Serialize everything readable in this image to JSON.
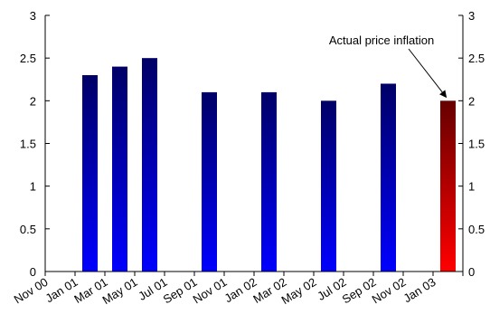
{
  "chart_data": {
    "type": "bar",
    "title": "",
    "xlabel": "",
    "ylabel": "",
    "ylim": [
      0,
      3
    ],
    "y_ticks": [
      "0",
      "0.5",
      "1",
      "1.5",
      "2",
      "2.5",
      "3"
    ],
    "y2_ticks": [
      "0",
      "0.5",
      "1",
      "1.5",
      "2",
      "2.5",
      "3"
    ],
    "categories": [
      "Nov 00",
      "Jan 01",
      "Mar 01",
      "May 01",
      "Jul 01",
      "Sep 01",
      "Nov 01",
      "Jan 02",
      "Mar 02",
      "May 02",
      "Jul 02",
      "Sep 02",
      "Nov 02",
      "Jan 03"
    ],
    "values": [
      null,
      2.3,
      2.4,
      2.5,
      null,
      2.1,
      null,
      2.1,
      null,
      2.0,
      null,
      2.2,
      null,
      2.0
    ],
    "bar_colors": {
      "default": [
        "#000066",
        "#0000ff"
      ],
      "highlight": [
        "#660000",
        "#ff0000"
      ]
    },
    "highlight_category": "Jan 03",
    "annotation": {
      "text": "Actual price inflation",
      "target_category": "Jan 03"
    },
    "grid": false,
    "legend": "none"
  }
}
